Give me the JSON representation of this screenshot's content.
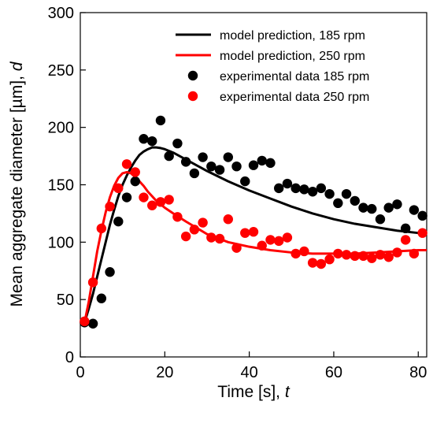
{
  "chart_data": {
    "type": "scatter",
    "xlabel": "Time [s], t",
    "ylabel": "Mean aggregate diameter [µm], d",
    "xlim": [
      0,
      82
    ],
    "ylim": [
      0,
      300
    ],
    "x_ticks": [
      0,
      20,
      40,
      60,
      80
    ],
    "y_ticks": [
      0,
      50,
      100,
      150,
      200,
      250,
      300
    ],
    "grid": false,
    "legend_position": "top-right",
    "series": [
      {
        "name": "model prediction, 185 rpm",
        "kind": "line",
        "color": "#000000",
        "x": [
          1,
          2,
          3,
          4,
          5,
          6,
          7,
          8,
          9,
          10,
          11,
          12,
          13,
          14,
          15,
          16,
          17,
          18,
          19,
          20,
          22,
          25,
          30,
          35,
          40,
          45,
          50,
          55,
          60,
          65,
          70,
          75,
          80,
          82
        ],
        "y": [
          30,
          42,
          55,
          70,
          85,
          100,
          115,
          128,
          140,
          150,
          158,
          165,
          171,
          176,
          179,
          181,
          182.5,
          182.5,
          182,
          181,
          178,
          172,
          162,
          153,
          145,
          138,
          131,
          125,
          120,
          116,
          113,
          110,
          108,
          107
        ]
      },
      {
        "name": "model prediction, 250 rpm",
        "kind": "line",
        "color": "#ff0000",
        "x": [
          1,
          2,
          3,
          4,
          5,
          6,
          7,
          8,
          9,
          10,
          11,
          12,
          13,
          14,
          15,
          16,
          18,
          20,
          22,
          25,
          30,
          35,
          40,
          45,
          50,
          55,
          60,
          65,
          70,
          75,
          80,
          82
        ],
        "y": [
          30,
          48,
          70,
          92,
          110,
          126,
          139,
          149,
          156,
          160,
          161,
          160,
          157,
          153,
          149,
          144,
          136,
          130,
          125,
          118,
          107,
          100,
          96,
          93,
          91,
          90,
          90,
          90,
          91,
          92,
          93,
          93
        ]
      },
      {
        "name": "experimental data 185 rpm",
        "kind": "scatter",
        "color": "#000000",
        "x": [
          1,
          3,
          5,
          7,
          9,
          11,
          13,
          15,
          17,
          19,
          21,
          23,
          25,
          27,
          29,
          31,
          33,
          35,
          37,
          39,
          41,
          43,
          45,
          47,
          49,
          51,
          53,
          55,
          57,
          59,
          61,
          63,
          65,
          67,
          69,
          71,
          73,
          75,
          77,
          79,
          81
        ],
        "y": [
          30,
          29,
          51,
          74,
          118,
          139,
          153,
          190,
          188,
          206,
          175,
          186,
          170,
          160,
          174,
          166,
          163,
          174,
          166,
          153,
          167,
          171,
          169,
          147,
          151,
          147,
          146,
          144,
          147,
          142,
          134,
          142,
          136,
          130,
          129,
          120,
          130,
          133,
          112,
          128,
          123
        ]
      },
      {
        "name": "experimental data 250 rpm",
        "kind": "scatter",
        "color": "#ff0000",
        "x": [
          1,
          3,
          5,
          7,
          9,
          11,
          13,
          15,
          17,
          19,
          21,
          23,
          25,
          27,
          29,
          31,
          33,
          35,
          37,
          39,
          41,
          43,
          45,
          47,
          49,
          51,
          53,
          55,
          57,
          59,
          61,
          63,
          65,
          67,
          69,
          71,
          73,
          75,
          77,
          79,
          81
        ],
        "y": [
          31,
          65,
          112,
          131,
          147,
          168,
          161,
          139,
          132,
          135,
          137,
          122,
          105,
          111,
          117,
          104,
          103,
          120,
          95,
          108,
          109,
          97,
          102,
          101,
          104,
          90,
          92,
          82,
          81,
          85,
          90,
          89,
          88,
          88,
          86,
          89,
          87,
          91,
          102,
          90,
          108
        ]
      }
    ]
  }
}
